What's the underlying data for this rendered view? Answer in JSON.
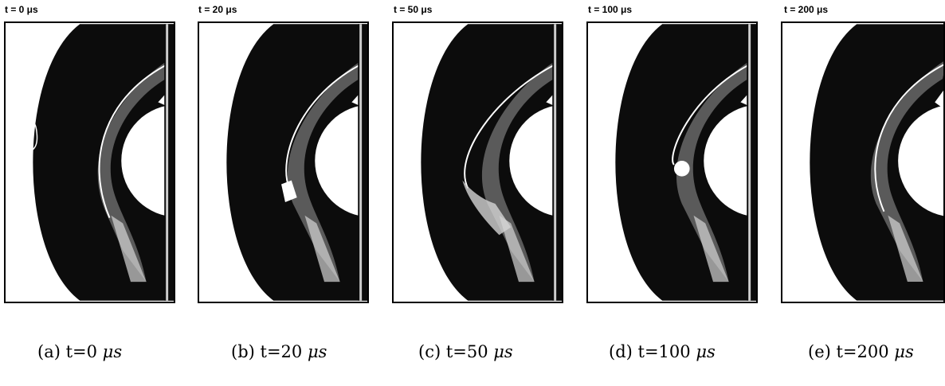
{
  "figure": {
    "panels": [
      {
        "id": "a",
        "time_us": 0,
        "frame_title": "t = 0 μs",
        "caption_prefix": "(a) t=0",
        "caption_unit": "μs"
      },
      {
        "id": "b",
        "time_us": 20,
        "frame_title": "t = 20 μs",
        "caption_prefix": "(b) t=20",
        "caption_unit": "μs"
      },
      {
        "id": "c",
        "time_us": 50,
        "frame_title": "t = 50 μs",
        "caption_prefix": "(c) t=50",
        "caption_unit": "μs"
      },
      {
        "id": "d",
        "time_us": 100,
        "frame_title": "t = 100 μs",
        "caption_prefix": "(d) t=100",
        "caption_unit": "μs"
      },
      {
        "id": "e",
        "time_us": 200,
        "frame_title": "t = 200 μs",
        "caption_prefix": "(e) t=200",
        "caption_unit": "μs"
      }
    ],
    "colors": {
      "field": "#0c0c0c",
      "background": "#ffffff",
      "gas": "#d4d4d4"
    }
  }
}
